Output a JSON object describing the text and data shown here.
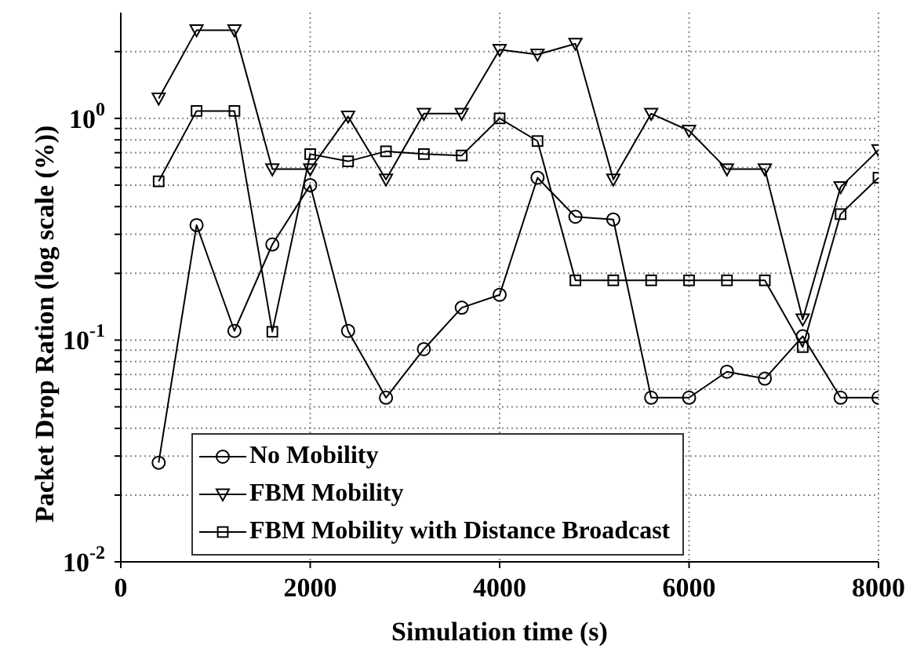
{
  "chart_data": {
    "type": "line",
    "xlabel": "Simulation time (s)",
    "ylabel": "Packet Drop Ration (log scale (%))",
    "x": [
      400,
      800,
      1200,
      1600,
      2000,
      2400,
      2800,
      3200,
      3600,
      4000,
      4400,
      4800,
      5200,
      5600,
      6000,
      6400,
      6800,
      7200,
      7600,
      8000
    ],
    "series": [
      {
        "name": "No Mobility",
        "color": "#000000",
        "marker": "circle",
        "values": [
          0.028,
          0.33,
          0.11,
          0.27,
          0.5,
          0.11,
          0.055,
          0.091,
          0.14,
          0.16,
          0.54,
          0.36,
          0.35,
          0.055,
          0.055,
          0.072,
          0.067,
          0.104,
          0.055,
          0.055
        ]
      },
      {
        "name": "FBM Mobility",
        "color": "#000000",
        "marker": "triangle",
        "values": [
          1.23,
          2.5,
          2.5,
          0.59,
          0.59,
          1.02,
          0.53,
          1.05,
          1.05,
          2.04,
          1.94,
          2.17,
          0.53,
          1.05,
          0.88,
          0.59,
          0.59,
          0.124,
          0.49,
          0.72
        ]
      },
      {
        "name": "FBM Mobility with Distance Broadcast",
        "color": "#000000",
        "marker": "square",
        "values": [
          0.52,
          1.08,
          1.08,
          0.109,
          0.69,
          0.64,
          0.71,
          0.69,
          0.68,
          1.0,
          0.79,
          0.186,
          0.186,
          0.186,
          0.186,
          0.186,
          0.186,
          0.093,
          0.37,
          0.54
        ]
      }
    ],
    "xlim": [
      0,
      8000
    ],
    "xticks": [
      0,
      2000,
      4000,
      6000,
      8000
    ],
    "ylim": [
      0.01,
      3
    ],
    "yticks": [
      {
        "value": 0.01,
        "label": "10$^{-2}$"
      },
      {
        "value": 0.02,
        "label": null
      },
      {
        "value": 0.03,
        "label": null
      },
      {
        "value": 0.04,
        "label": null
      },
      {
        "value": 0.05,
        "label": null
      },
      {
        "value": 0.06,
        "label": null
      },
      {
        "value": 0.07,
        "label": null
      },
      {
        "value": 0.08,
        "label": null
      },
      {
        "value": 0.09,
        "label": null
      },
      {
        "value": 0.1,
        "label": "10$^{-1}$"
      },
      {
        "value": 0.2,
        "label": null
      },
      {
        "value": 0.3,
        "label": null
      },
      {
        "value": 0.4,
        "label": null
      },
      {
        "value": 0.5,
        "label": null
      },
      {
        "value": 0.6,
        "label": null
      },
      {
        "value": 0.7,
        "label": null
      },
      {
        "value": 0.8,
        "label": null
      },
      {
        "value": 0.9,
        "label": null
      },
      {
        "value": 1,
        "label": "10$^{0}$"
      },
      {
        "value": 2,
        "label": null
      }
    ],
    "log": "y",
    "grid": true,
    "legend": "bottom left",
    "line_style": "solid"
  }
}
